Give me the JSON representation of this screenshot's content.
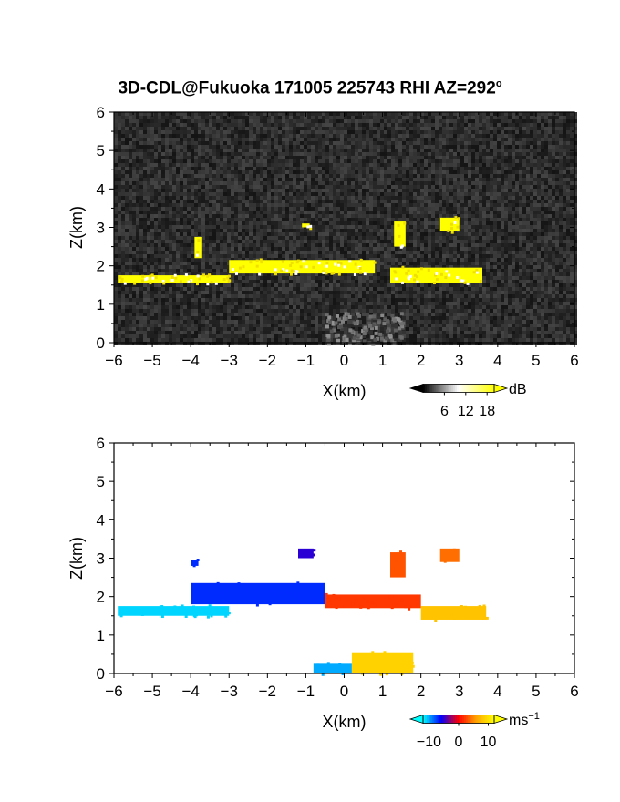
{
  "title": "3D-CDL@Fukuoka 171005 225743 RHI AZ=292°",
  "title_main": "3D-CDL@Fukuoka 171005 225743 RHI AZ=292",
  "title_sup": "o",
  "chart_data": [
    {
      "type": "heatmap",
      "panel": "top",
      "title": "",
      "xlabel": "X(km)",
      "ylabel": "Z(km)",
      "xlim": [
        -6,
        6
      ],
      "ylim": [
        0,
        6
      ],
      "xticks": [
        -6,
        -5,
        -4,
        -3,
        -2,
        -1,
        0,
        1,
        2,
        3,
        4,
        5,
        6
      ],
      "yticks": [
        0,
        1,
        2,
        3,
        4,
        5,
        6
      ],
      "background": "noisy gray speckle (low dB)",
      "colorbar": {
        "unit": "dB",
        "ticks": [
          6,
          12,
          18
        ],
        "range": [
          0,
          20
        ],
        "extend": "both",
        "colors": [
          "#000000",
          "#ffffff",
          "#ffff00"
        ]
      },
      "cloud_layers": [
        {
          "x": [
            -5.9,
            -3.0
          ],
          "z": [
            1.55,
            1.8
          ]
        },
        {
          "x": [
            -3.0,
            0.8
          ],
          "z": [
            1.8,
            2.2
          ]
        },
        {
          "x": [
            1.2,
            3.6
          ],
          "z": [
            1.55,
            2.0
          ]
        },
        {
          "x": [
            -3.9,
            -3.7
          ],
          "z": [
            2.2,
            2.8
          ]
        },
        {
          "x": [
            -1.1,
            -0.9
          ],
          "z": [
            3.0,
            3.15
          ]
        },
        {
          "x": [
            1.3,
            1.6
          ],
          "z": [
            2.5,
            3.2
          ]
        },
        {
          "x": [
            2.5,
            3.0
          ],
          "z": [
            2.9,
            3.3
          ]
        }
      ],
      "peak_value_dB": 18,
      "near_ground_echo": {
        "x": [
          -0.5,
          1.5
        ],
        "z": [
          0,
          0.8
        ]
      }
    },
    {
      "type": "heatmap",
      "panel": "bottom",
      "title": "",
      "xlabel": "X(km)",
      "ylabel": "Z(km)",
      "xlim": [
        -6,
        6
      ],
      "ylim": [
        0,
        6
      ],
      "xticks": [
        -6,
        -5,
        -4,
        -3,
        -2,
        -1,
        0,
        1,
        2,
        3,
        4,
        5,
        6
      ],
      "yticks": [
        0,
        1,
        2,
        3,
        4,
        5,
        6
      ],
      "colorbar": {
        "unit": "ms",
        "unit_sup": "-1",
        "ticks": [
          -10,
          0,
          10
        ],
        "range": [
          -12,
          12
        ],
        "extend": "both",
        "colors": [
          "#00ffff",
          "#0000ff",
          "#ff0000",
          "#ffa500",
          "#ffff00"
        ]
      },
      "velocity_regions": [
        {
          "x": [
            -5.9,
            -3.0
          ],
          "z": [
            1.5,
            1.8
          ],
          "velocity": -11
        },
        {
          "x": [
            -4.0,
            -0.5
          ],
          "z": [
            1.8,
            2.4
          ],
          "velocity": -7
        },
        {
          "x": [
            -4.0,
            -3.8
          ],
          "z": [
            2.8,
            3.0
          ],
          "velocity": -7
        },
        {
          "x": [
            -1.2,
            -0.8
          ],
          "z": [
            3.0,
            3.3
          ],
          "velocity": -5
        },
        {
          "x": [
            -0.5,
            2.0
          ],
          "z": [
            1.7,
            2.1
          ],
          "velocity": 2
        },
        {
          "x": [
            1.2,
            1.6
          ],
          "z": [
            2.5,
            3.2
          ],
          "velocity": 3
        },
        {
          "x": [
            2.0,
            3.7
          ],
          "z": [
            1.4,
            1.8
          ],
          "velocity": 8
        },
        {
          "x": [
            2.5,
            3.0
          ],
          "z": [
            2.9,
            3.3
          ],
          "velocity": 4
        },
        {
          "x": [
            -0.8,
            0.2
          ],
          "z": [
            0.0,
            0.3
          ],
          "velocity": -10
        },
        {
          "x": [
            0.2,
            1.8
          ],
          "z": [
            0.0,
            0.6
          ],
          "velocity": 9
        }
      ]
    }
  ]
}
